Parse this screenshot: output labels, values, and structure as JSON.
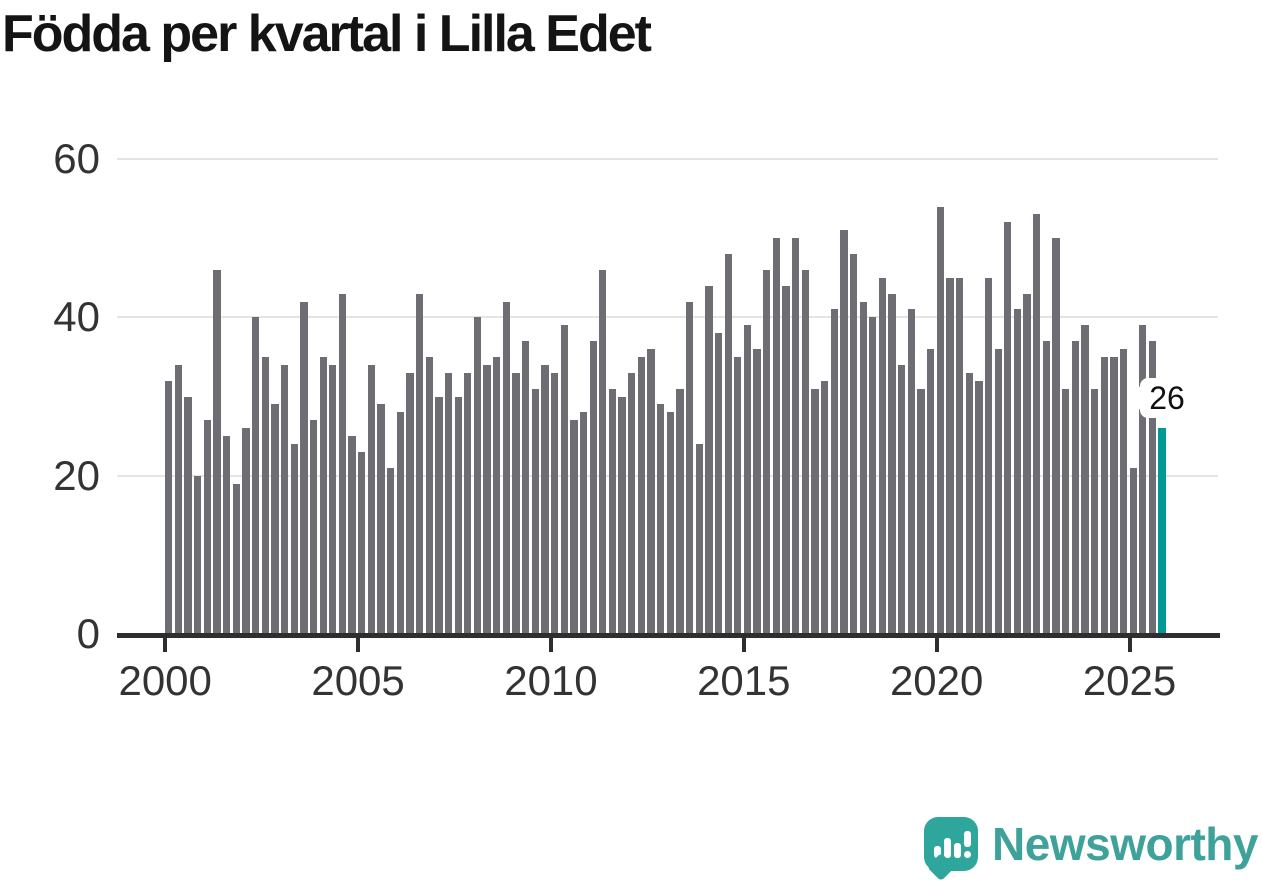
{
  "title": "Födda per kvartal i Lilla Edet",
  "annotation": {
    "label": "26"
  },
  "branding": {
    "name": "Newsworthy"
  },
  "colors": {
    "bar": "#6e6d73",
    "highlight": "#009a93",
    "gridline": "#e4e4e4",
    "axis": "#2e2e2e",
    "title": "#141414",
    "tick_label": "#333333",
    "brand_teal": "#2fa69c"
  },
  "chart_data": {
    "type": "bar",
    "title": "Födda per kvartal i Lilla Edet",
    "xlabel": "",
    "ylabel": "",
    "ylim": [
      0,
      60
    ],
    "y_ticks": [
      0,
      20,
      40,
      60
    ],
    "grid": "horizontal",
    "legend": "none",
    "x_start_quarter": "2000-Q1",
    "x_end_quarter": "2025-Q4",
    "x_tick_years": [
      2000,
      2005,
      2010,
      2015,
      2020,
      2025
    ],
    "values": [
      32,
      34,
      30,
      20,
      27,
      46,
      25,
      19,
      26,
      40,
      35,
      29,
      34,
      24,
      42,
      27,
      35,
      34,
      43,
      25,
      23,
      34,
      29,
      21,
      28,
      33,
      43,
      35,
      30,
      33,
      30,
      33,
      40,
      34,
      35,
      42,
      33,
      37,
      31,
      34,
      33,
      39,
      27,
      28,
      37,
      46,
      31,
      30,
      33,
      35,
      36,
      29,
      28,
      31,
      42,
      24,
      44,
      38,
      48,
      35,
      39,
      36,
      46,
      50,
      44,
      50,
      46,
      31,
      32,
      41,
      51,
      48,
      42,
      40,
      45,
      43,
      34,
      41,
      31,
      36,
      54,
      45,
      45,
      33,
      32,
      45,
      36,
      52,
      41,
      43,
      53,
      37,
      50,
      31,
      37,
      39,
      31,
      35,
      35,
      36,
      21,
      39,
      37,
      26
    ],
    "highlight": {
      "quarter": "2025-Q4",
      "value": 26,
      "color": "#009a93"
    }
  }
}
